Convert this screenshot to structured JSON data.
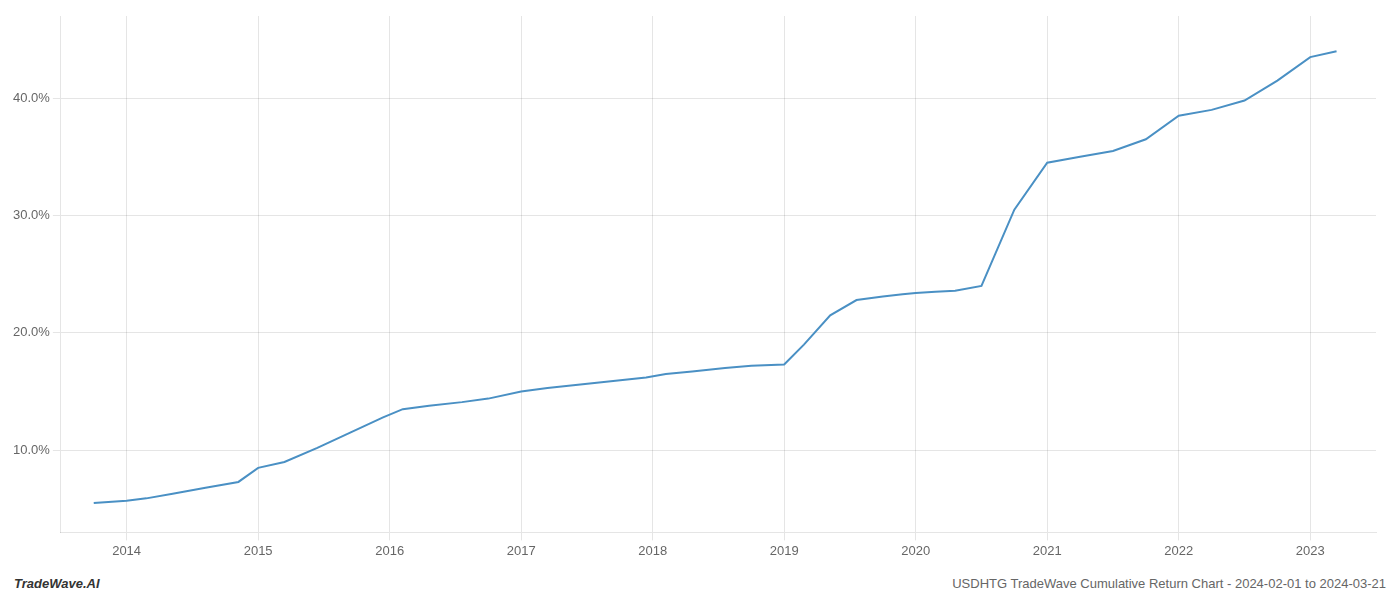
{
  "chart_data": {
    "type": "line",
    "annotations": [
      "TradeWave.AI",
      "USDHTG TradeWave Cumulative Return Chart - 2024-02-01 to 2024-03-21"
    ],
    "x": [
      2013.75,
      2014.0,
      2014.15,
      2014.35,
      2014.6,
      2014.85,
      2015.0,
      2015.2,
      2015.45,
      2015.7,
      2015.95,
      2016.1,
      2016.3,
      2016.55,
      2016.75,
      2017.0,
      2017.2,
      2017.45,
      2017.7,
      2017.95,
      2018.1,
      2018.3,
      2018.55,
      2018.75,
      2019.0,
      2019.15,
      2019.35,
      2019.55,
      2019.75,
      2019.9,
      2020.0,
      2020.15,
      2020.3,
      2020.5,
      2020.75,
      2021.0,
      2021.25,
      2021.5,
      2021.75,
      2022.0,
      2022.25,
      2022.5,
      2022.75,
      2023.0,
      2023.2
    ],
    "values": [
      5.5,
      5.7,
      5.9,
      6.3,
      6.8,
      7.3,
      8.5,
      9.0,
      10.2,
      11.5,
      12.8,
      13.5,
      13.8,
      14.1,
      14.4,
      15.0,
      15.3,
      15.6,
      15.9,
      16.2,
      16.5,
      16.7,
      17.0,
      17.2,
      17.3,
      19.0,
      21.5,
      22.8,
      23.1,
      23.3,
      23.4,
      23.5,
      23.6,
      24.0,
      30.5,
      34.5,
      35.0,
      35.5,
      36.5,
      38.5,
      39.0,
      39.8,
      41.5,
      43.5,
      44.0
    ],
    "color": "#4a90c4",
    "xlim": [
      2013.5,
      2023.5
    ],
    "xticks": [
      2014,
      2015,
      2016,
      2017,
      2018,
      2019,
      2020,
      2021,
      2022,
      2023
    ],
    "ylim": [
      3.0,
      47.0
    ],
    "yticks": [
      {
        "value": 10.0,
        "label": "10.0%"
      },
      {
        "value": 20.0,
        "label": "20.0%"
      },
      {
        "value": 30.0,
        "label": "30.0%"
      },
      {
        "value": 40.0,
        "label": "40.0%"
      }
    ],
    "grid": true
  }
}
